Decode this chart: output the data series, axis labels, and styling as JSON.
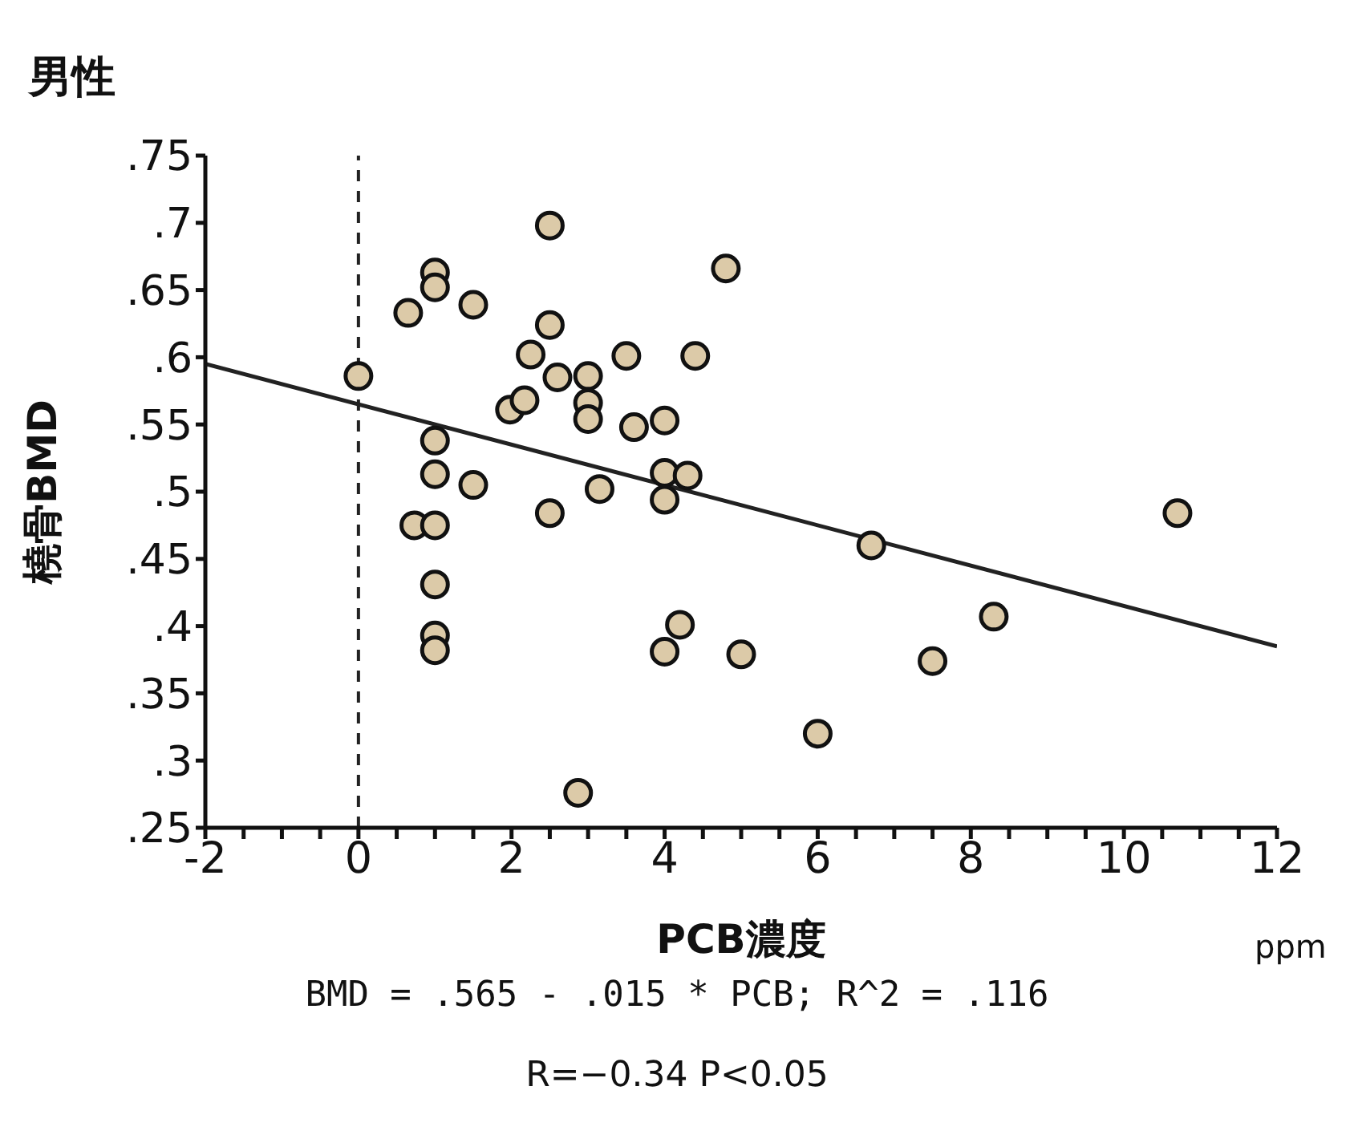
{
  "chart_data": {
    "type": "scatter",
    "title": "男性",
    "xlabel": "PCB濃度",
    "ylabel": "橈骨BMD",
    "xlim": [
      -2,
      12
    ],
    "xticks": [
      -2,
      {
        "value": -1.5,
        "label": null
      },
      {
        "value": -1,
        "label": null
      },
      {
        "value": -0.5,
        "label": null
      },
      0,
      {
        "value": 0.5,
        "label": null
      },
      {
        "value": 1,
        "label": null
      },
      {
        "value": 1.5,
        "label": null
      },
      2,
      {
        "value": 2.5,
        "label": null
      },
      {
        "value": 3,
        "label": null
      },
      {
        "value": 3.5,
        "label": null
      },
      4,
      {
        "value": 4.5,
        "label": null
      },
      {
        "value": 5,
        "label": null
      },
      {
        "value": 5.5,
        "label": null
      },
      6,
      {
        "value": 6.5,
        "label": null
      },
      {
        "value": 7,
        "label": null
      },
      {
        "value": 7.5,
        "label": null
      },
      8,
      {
        "value": 8.5,
        "label": null
      },
      {
        "value": 9,
        "label": null
      },
      {
        "value": 9.5,
        "label": null
      },
      10,
      {
        "value": 10.5,
        "label": null
      },
      {
        "value": 11,
        "label": null
      },
      {
        "value": 11.5,
        "label": null
      },
      12
    ],
    "ylim": [
      0.25,
      0.75
    ],
    "yticks": [
      {
        "value": 0.25,
        "label": ".25"
      },
      {
        "value": 0.3,
        "label": ".3"
      },
      {
        "value": 0.35,
        "label": ".35"
      },
      {
        "value": 0.4,
        "label": ".4"
      },
      {
        "value": 0.45,
        "label": ".45"
      },
      {
        "value": 0.5,
        "label": ".5"
      },
      {
        "value": 0.55,
        "label": ".55"
      },
      {
        "value": 0.6,
        "label": ".6"
      },
      {
        "value": 0.65,
        "label": ".65"
      },
      {
        "value": 0.7,
        "label": ".7"
      },
      {
        "value": 0.75,
        "label": ".75"
      }
    ],
    "marker": "circle",
    "series": [
      {
        "color": "#dccaa8",
        "x": [
          0,
          0.65,
          1,
          1,
          1.5,
          2.5,
          2.5,
          2.25,
          2.6,
          3,
          3,
          3,
          1.98,
          2.17,
          3.5,
          4.4,
          4.8,
          3.6,
          4,
          1,
          1,
          1.5,
          3.15,
          4,
          4.3,
          4,
          2.5,
          0.73,
          1,
          1,
          1,
          1,
          4.2,
          4,
          5,
          2.87,
          6,
          6.7,
          7.5,
          8.3,
          10.7
        ],
        "values": [
          0.586,
          0.633,
          0.663,
          0.652,
          0.639,
          0.698,
          0.624,
          0.602,
          0.585,
          0.586,
          0.566,
          0.554,
          0.561,
          0.568,
          0.601,
          0.601,
          0.666,
          0.548,
          0.553,
          0.538,
          0.513,
          0.505,
          0.502,
          0.514,
          0.512,
          0.494,
          0.484,
          0.475,
          0.475,
          0.431,
          0.393,
          0.382,
          0.401,
          0.381,
          0.379,
          0.276,
          0.32,
          0.46,
          0.374,
          0.407,
          0.484
        ]
      },
      {
        "type": "line",
        "marker": "none",
        "color": "#222222",
        "x": [
          -2,
          12
        ],
        "values": [
          0.595,
          0.385
        ]
      }
    ],
    "ref_lines": [
      {
        "axis": "x",
        "value": 0,
        "line_style": "dashed",
        "color": "#222222"
      }
    ],
    "annotations": [
      "ppm",
      "BMD = .565 - .015 * PCB; R^2 = .116",
      "R=−0.34 P<0.05"
    ]
  }
}
